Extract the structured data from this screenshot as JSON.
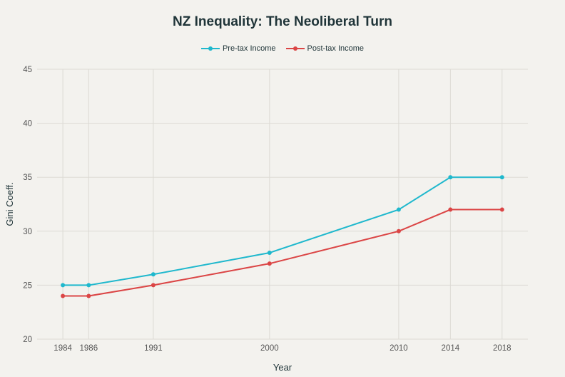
{
  "chart_data": {
    "type": "line",
    "title": "NZ Inequality: The Neoliberal Turn",
    "xlabel": "Year",
    "ylabel": "Gini Coeff.",
    "x": [
      1984,
      1986,
      1991,
      2000,
      2010,
      2014,
      2018
    ],
    "x_tick_labels": [
      "1984",
      "1986",
      "1991",
      "2000",
      "2010",
      "2014",
      "2018"
    ],
    "y_ticks": [
      20,
      25,
      30,
      35,
      40,
      45
    ],
    "y_tick_labels": [
      "20",
      "25",
      "30",
      "35",
      "40",
      "45"
    ],
    "xlim": [
      1983,
      2020
    ],
    "ylim": [
      20,
      45
    ],
    "grid": true,
    "legend_position": "top-center",
    "series": [
      {
        "name": "Pre-tax Income",
        "color": "#1fb8cd",
        "values": [
          25,
          25,
          26,
          28,
          32,
          35,
          35
        ]
      },
      {
        "name": "Post-tax Income",
        "color": "#db4545",
        "values": [
          24,
          24,
          25,
          27,
          30,
          32,
          32
        ]
      }
    ]
  }
}
